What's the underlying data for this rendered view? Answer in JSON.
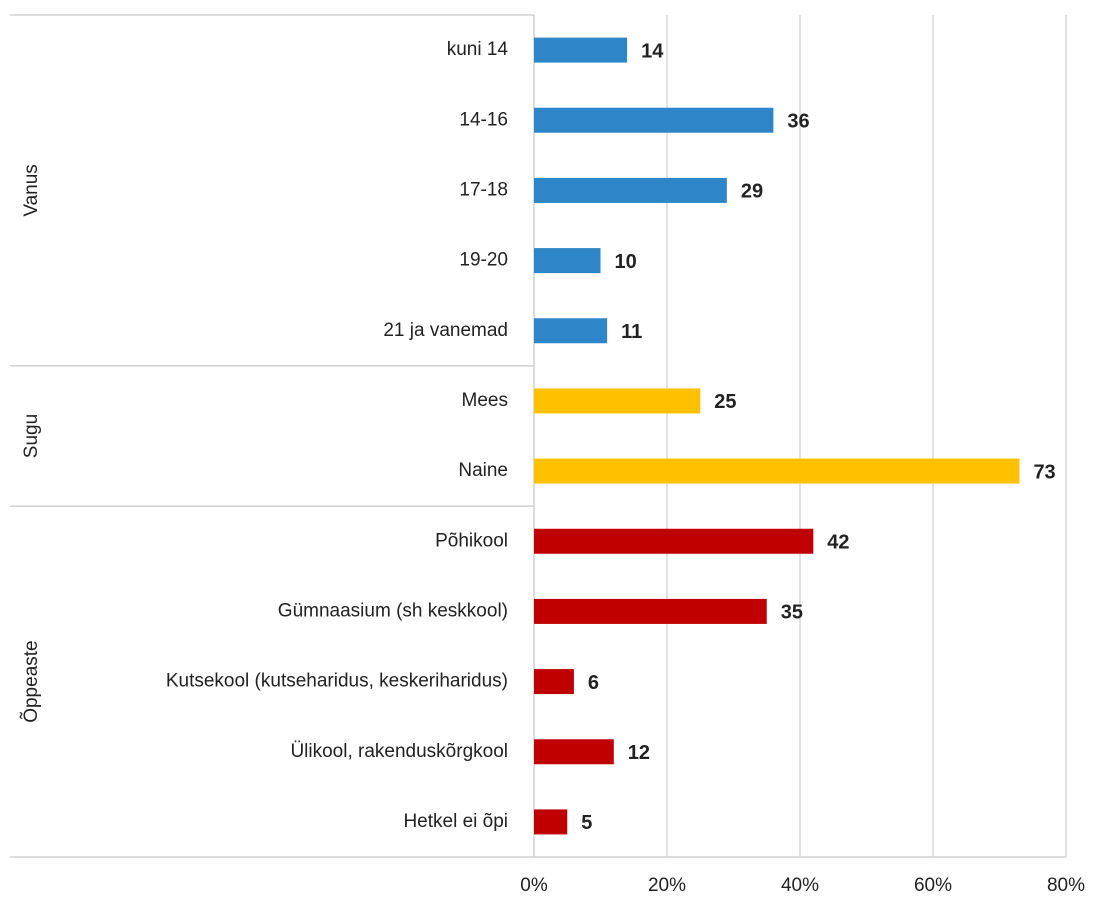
{
  "chart_data": {
    "type": "bar",
    "orientation": "horizontal",
    "groups": [
      {
        "name": "Vanus",
        "color": "#2e86c9",
        "categories": [
          "kuni 14",
          "14-16",
          "17-18",
          "19-20",
          "21 ja vanemad"
        ],
        "values": [
          14,
          36,
          29,
          10,
          11
        ]
      },
      {
        "name": "Sugu",
        "color": "#ffc000",
        "categories": [
          "Mees",
          "Naine"
        ],
        "values": [
          25,
          73
        ]
      },
      {
        "name": "Õppeaste",
        "color": "#c00000",
        "categories": [
          "Põhikool",
          "Gümnaasium (sh keskkool)",
          "Kutsekool (kutseharidus, keskeriharidus)",
          "Ülikool, rakenduskõrgkool",
          "Hetkel ei õpi"
        ],
        "values": [
          42,
          35,
          6,
          12,
          5
        ]
      }
    ],
    "xlim": [
      0,
      80
    ],
    "xticks": [
      {
        "value": 0,
        "label": "0%"
      },
      {
        "value": 20,
        "label": "20%"
      },
      {
        "value": 40,
        "label": "40%"
      },
      {
        "value": 60,
        "label": "60%"
      },
      {
        "value": 80,
        "label": "80%"
      }
    ],
    "grid": true
  }
}
